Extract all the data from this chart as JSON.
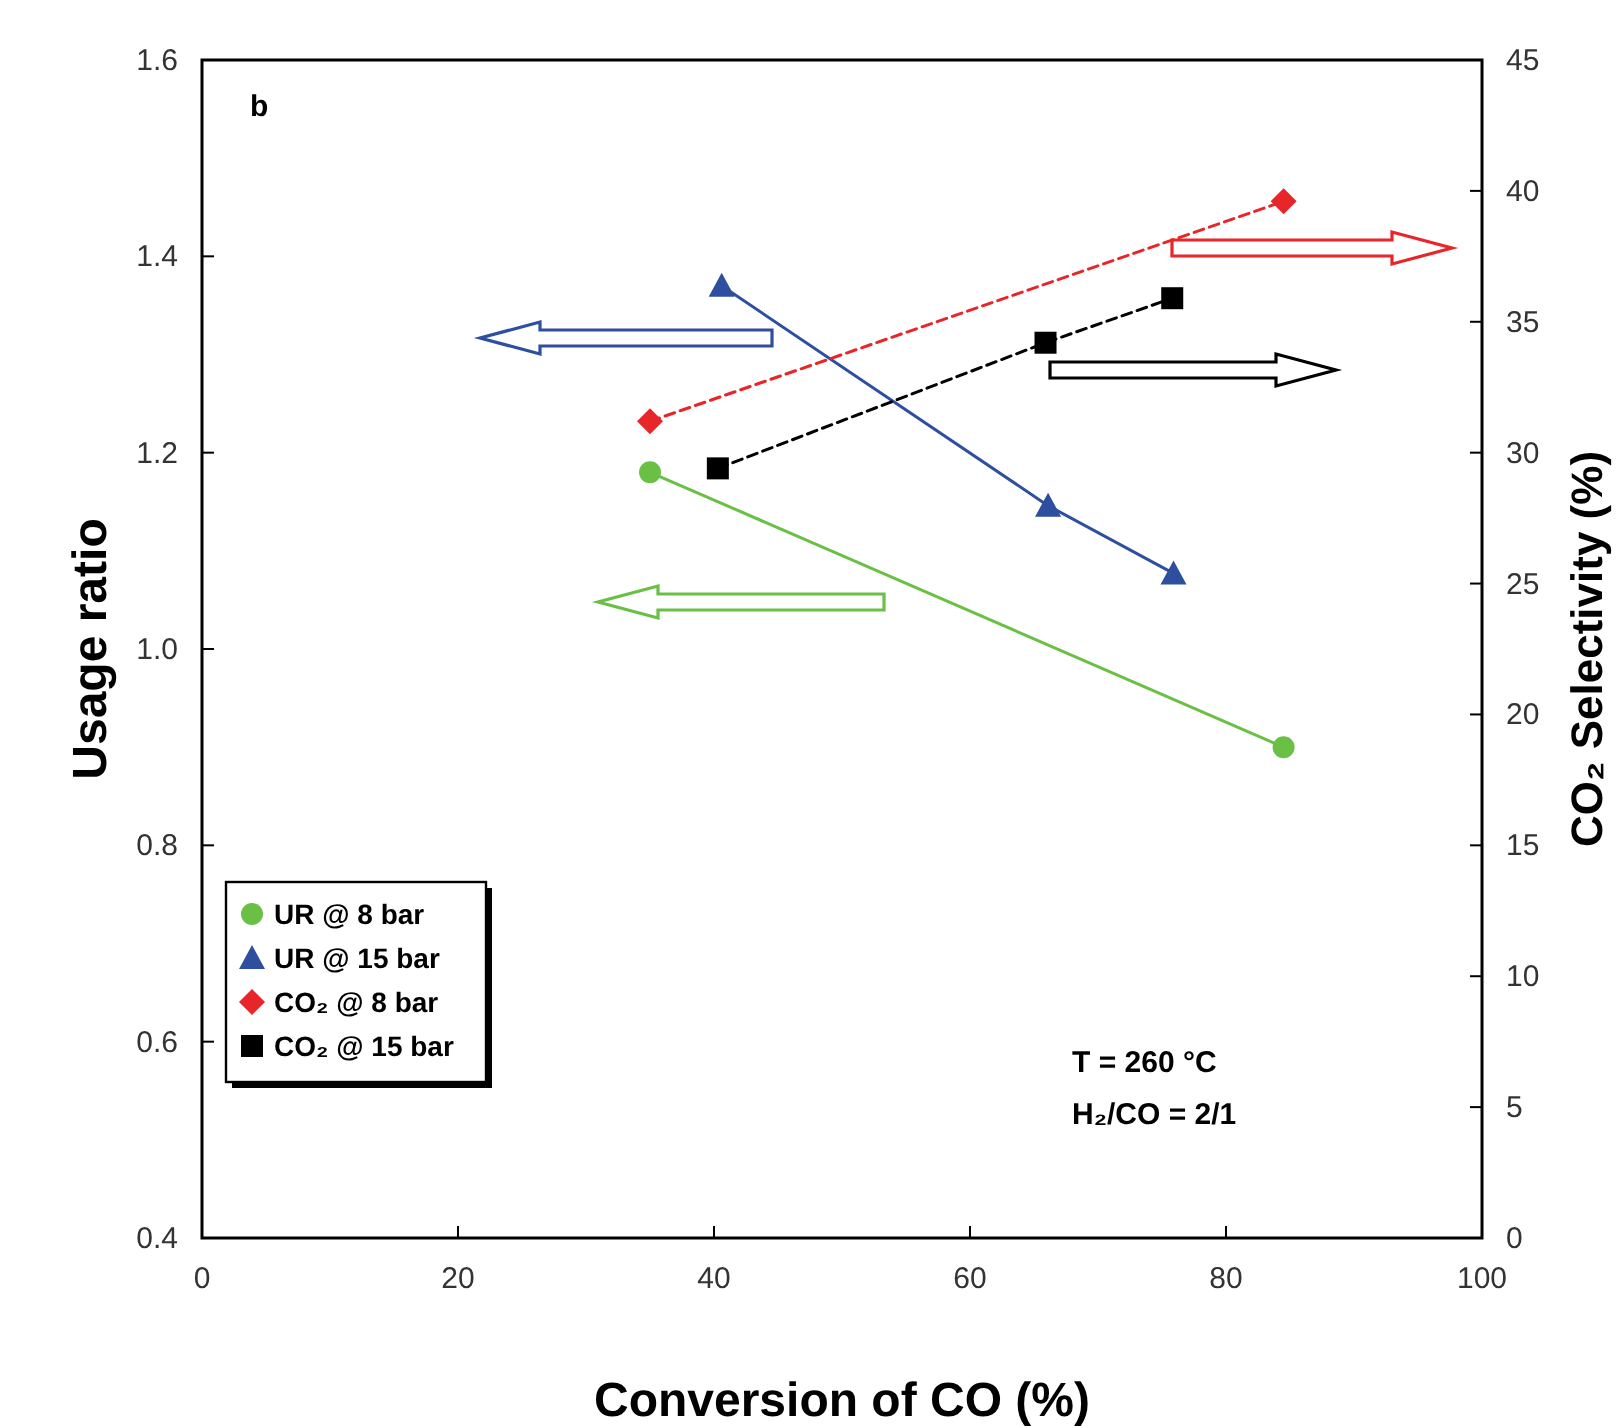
{
  "chart_data": {
    "type": "line",
    "xlabel": "Conversion of CO (%)",
    "ylabel": "Usage ratio",
    "y2label": "CO₂ Selectivity (%)",
    "xlim": [
      0,
      100
    ],
    "xticks": [
      0,
      20,
      40,
      60,
      80,
      100
    ],
    "ylim": [
      0.4,
      1.6
    ],
    "yticks": [
      {
        "value": 0.4,
        "label": "0.4"
      },
      {
        "value": 0.6,
        "label": "0.6"
      },
      {
        "value": 0.8,
        "label": "0.8"
      },
      {
        "value": 1.0,
        "label": "1.0"
      },
      {
        "value": 1.2,
        "label": "1.2"
      },
      {
        "value": 1.4,
        "label": "1.4"
      },
      {
        "value": 1.6,
        "label": "1.6"
      }
    ],
    "y2lim": [
      0,
      45
    ],
    "y2ticks": [
      0,
      5,
      10,
      15,
      20,
      25,
      30,
      35,
      40,
      45
    ],
    "legend": "bottom left",
    "annotations": [
      "b",
      "T = 260 °C",
      "H₂/CO = 2/1"
    ],
    "series": [
      {
        "name": "UR @ 8 bar",
        "color": "#6abf45",
        "marker": "circle",
        "line_style": "solid",
        "x": [
          35,
          84.5
        ],
        "values": [
          1.18,
          0.9
        ]
      },
      {
        "name": "UR @ 15 bar",
        "color": "#2e4fa0",
        "marker": "triangle",
        "line_style": "solid",
        "x": [
          40.6,
          66.1,
          75.9
        ],
        "values": [
          1.37,
          1.146,
          1.077
        ]
      },
      {
        "name": "CO₂ @ 8 bar",
        "color": "#e8262a",
        "marker": "diamond",
        "line_style": "dashed",
        "axis": "y2",
        "x": [
          35,
          84.5
        ],
        "values": [
          31.2,
          39.6
        ]
      },
      {
        "name": "CO₂ @ 15 bar",
        "color": "#000000",
        "marker": "square",
        "line_style": "dashed",
        "axis": "y2",
        "x": [
          40.3,
          65.9,
          75.8
        ],
        "values": [
          29.4,
          34.2,
          35.9
        ]
      }
    ]
  }
}
